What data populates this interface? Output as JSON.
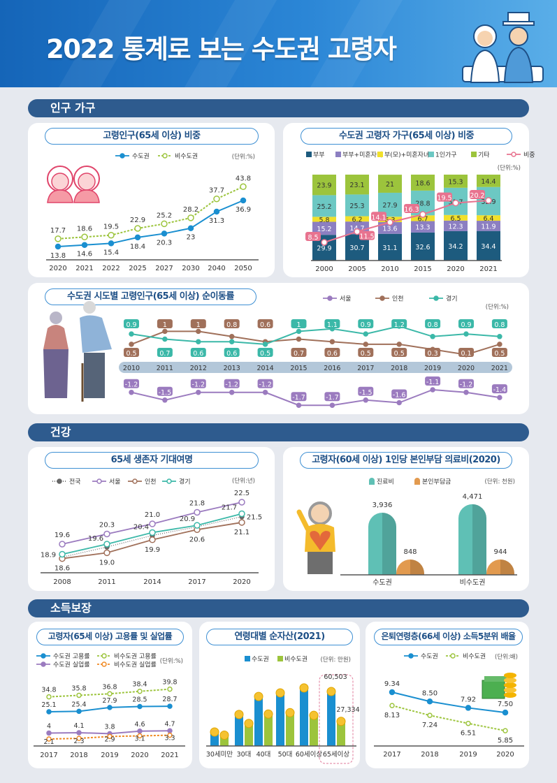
{
  "header": {
    "title": "2022 통계로 보는 수도권 고령자"
  },
  "sections": {
    "population": "인구 가구",
    "health": "건강",
    "income": "소득보장"
  },
  "chart_data": [
    {
      "type": "line",
      "title": "고령인구(65세 이상) 비중",
      "unit": "(단위:%)",
      "x": [
        "2020",
        "2021",
        "2022",
        "2025",
        "2027",
        "2030",
        "2040",
        "2050"
      ],
      "series": [
        {
          "name": "수도권",
          "color": "#1a8fd0",
          "values": [
            13.8,
            14.6,
            15.4,
            18.4,
            20.3,
            23.0,
            31.3,
            36.9
          ]
        },
        {
          "name": "비수도권",
          "color": "#9cc43c",
          "values": [
            17.7,
            18.6,
            19.5,
            22.9,
            25.2,
            28.2,
            37.7,
            43.8
          ]
        }
      ]
    },
    {
      "type": "bar",
      "stacked": true,
      "title": "수도권 고령자 가구(65세 이상) 비중",
      "unit": "(단위:%)",
      "x": [
        "2000",
        "2005",
        "2010",
        "2015",
        "2020",
        "2021"
      ],
      "series": [
        {
          "name": "부부",
          "color": "#1d5b7e",
          "values": [
            29.9,
            30.7,
            31.1,
            32.6,
            34.2,
            34.4
          ]
        },
        {
          "name": "부부+미혼자녀",
          "color": "#8c7fc1",
          "values": [
            15.2,
            14.7,
            13.6,
            13.3,
            12.3,
            11.9
          ]
        },
        {
          "name": "부(모)+미혼자녀",
          "color": "#f1e02b",
          "values": [
            5.8,
            6.2,
            6.3,
            6.7,
            6.5,
            6.4
          ]
        },
        {
          "name": "1인가구",
          "color": "#6cc8c3",
          "values": [
            25.2,
            25.3,
            27.9,
            28.8,
            31.7,
            32.9
          ]
        },
        {
          "name": "기타",
          "color": "#9cc43c",
          "values": [
            23.9,
            23.1,
            21.0,
            18.6,
            15.3,
            14.4
          ]
        }
      ],
      "line": {
        "name": "비중",
        "color": "#e8738f",
        "values": [
          8.5,
          11.5,
          14.1,
          16.3,
          19.5,
          20.2
        ]
      }
    },
    {
      "type": "line",
      "title": "수도권 시도별 고령인구(65세 이상) 순이동률",
      "unit": "(단위:%)",
      "x": [
        "2010",
        "2011",
        "2012",
        "2013",
        "2014",
        "2015",
        "2016",
        "2017",
        "2018",
        "2019",
        "2020",
        "2021"
      ],
      "series": [
        {
          "name": "서울",
          "color": "#9b7bbf",
          "values": [
            -1.2,
            -1.5,
            -1.2,
            -1.2,
            -1.2,
            -1.7,
            -1.7,
            -1.5,
            -1.6,
            -1.1,
            -1.2,
            -1.4
          ]
        },
        {
          "name": "인천",
          "color": "#a0705a",
          "values": [
            0.5,
            1.0,
            1.0,
            0.8,
            0.6,
            0.7,
            0.6,
            0.5,
            0.5,
            0.3,
            0.1,
            0.5
          ]
        },
        {
          "name": "경기",
          "color": "#3bb8a8",
          "values": [
            0.9,
            0.7,
            0.6,
            0.6,
            0.5,
            1.0,
            1.1,
            0.9,
            1.2,
            0.8,
            0.9,
            0.8
          ]
        }
      ]
    },
    {
      "type": "line",
      "title": "65세 생존자 기대여명",
      "unit": "(단위:년)",
      "x": [
        "2008",
        "2011",
        "2014",
        "2017",
        "2020"
      ],
      "series": [
        {
          "name": "전국",
          "color": "#666666",
          "values": [
            18.7,
            19.4,
            20.2,
            20.8,
            21.5
          ],
          "labels": [
            null,
            null,
            null,
            null,
            "21.5"
          ]
        },
        {
          "name": "서울",
          "color": "#9b7bbf",
          "values": [
            19.6,
            20.3,
            21.0,
            21.8,
            22.5
          ],
          "labels": [
            "19.6",
            "20.3",
            "21.0",
            "21.8",
            "22.5"
          ]
        },
        {
          "name": "인천",
          "color": "#a0705a",
          "values": [
            18.6,
            19.0,
            19.9,
            20.6,
            21.1
          ],
          "labels": [
            "18.6",
            "19.0",
            "19.9",
            "20.6",
            "21.1"
          ]
        },
        {
          "name": "경기",
          "color": "#3bb8a8",
          "values": [
            18.9,
            19.6,
            20.4,
            20.9,
            21.7
          ],
          "labels": [
            "18.9",
            "19.6",
            "20.4",
            "20.9",
            "21.7"
          ]
        }
      ]
    },
    {
      "type": "bar",
      "title": "고령자(60세 이상) 1인당 본인부담 의료비(2020)",
      "unit": "(단위: 천원)",
      "x": [
        "수도권",
        "비수도권"
      ],
      "series": [
        {
          "name": "진료비",
          "color": "#5fc0b5",
          "values": [
            3936,
            4471
          ],
          "labels": [
            "3,936",
            "4,471"
          ]
        },
        {
          "name": "본인부담금",
          "color": "#e29a4f",
          "values": [
            848,
            944
          ],
          "labels": [
            "848",
            "944"
          ]
        }
      ]
    },
    {
      "type": "line",
      "title": "고령자(65세 이상) 고용률 및 실업률",
      "unit": "(단위:%)",
      "x": [
        "2017",
        "2018",
        "2019",
        "2020",
        "2021"
      ],
      "series": [
        {
          "name": "수도권 고용률",
          "color": "#1a8fd0",
          "values": [
            25.1,
            25.4,
            27.9,
            28.5,
            28.7
          ]
        },
        {
          "name": "비수도권 고용률",
          "color": "#9cc43c",
          "values": [
            34.8,
            35.8,
            36.8,
            38.4,
            39.8
          ]
        },
        {
          "name": "수도권 실업률",
          "color": "#9b7bbf",
          "values": [
            4.0,
            4.1,
            3.8,
            4.6,
            4.7
          ]
        },
        {
          "name": "비수도권 실업률",
          "color": "#f08a24",
          "values": [
            2.1,
            2.3,
            2.9,
            3.1,
            3.3
          ]
        }
      ]
    },
    {
      "type": "bar",
      "title": "연령대별 순자산(2021)",
      "unit": "(단위: 만원)",
      "x": [
        "30세미만",
        "30대",
        "40대",
        "50대",
        "60세이상",
        "65세이상"
      ],
      "series": [
        {
          "name": "수도권",
          "color": "#1a8fd0",
          "values": [
            15500,
            35000,
            55000,
            59000,
            64500,
            60503
          ],
          "labels": [
            null,
            null,
            null,
            null,
            null,
            "60,503"
          ]
        },
        {
          "name": "비수도권",
          "color": "#9cc43c",
          "values": [
            12000,
            25000,
            35500,
            37000,
            34000,
            27334
          ],
          "labels": [
            null,
            null,
            null,
            null,
            null,
            "27,334"
          ]
        }
      ]
    },
    {
      "type": "line",
      "title": "은퇴연령층(66세 이상) 소득5분위 배율",
      "unit": "(단위:배)",
      "x": [
        "2017",
        "2018",
        "2019",
        "2020"
      ],
      "series": [
        {
          "name": "수도권",
          "color": "#1a8fd0",
          "values": [
            9.34,
            8.5,
            7.92,
            7.5
          ],
          "labels": [
            "9.34",
            "8.50",
            "7.92",
            "7.50"
          ]
        },
        {
          "name": "비수도권",
          "color": "#9cc43c",
          "values": [
            8.13,
            7.24,
            6.51,
            5.85
          ],
          "labels": [
            "8.13",
            "7.24",
            "6.51",
            "5.85"
          ]
        }
      ]
    }
  ]
}
